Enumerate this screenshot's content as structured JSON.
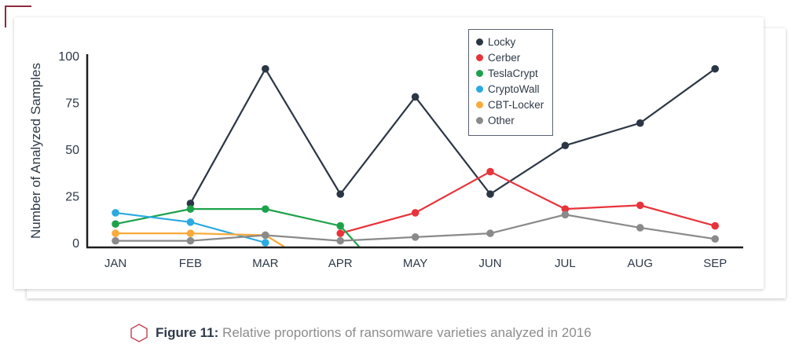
{
  "chart_data": {
    "type": "line",
    "title": "",
    "xlabel": "",
    "ylabel": "Number of Analyzed Samples",
    "ylim": [
      0,
      100
    ],
    "yticks": [
      0,
      25,
      50,
      75,
      100
    ],
    "categories": [
      "JAN",
      "FEB",
      "MAR",
      "APR",
      "MAY",
      "JUN",
      "JUL",
      "AUG",
      "SEP"
    ],
    "grid": false,
    "legend_position": "top-center",
    "series": [
      {
        "name": "Locky",
        "color": "#2b3645",
        "values": [
          null,
          21,
          93,
          26,
          78,
          26,
          52,
          64,
          93
        ]
      },
      {
        "name": "Cerber",
        "color": "#e8333a",
        "values": [
          null,
          null,
          null,
          5,
          16,
          38,
          18,
          20,
          9
        ]
      },
      {
        "name": "TeslaCrypt",
        "color": "#1da24b",
        "values": [
          10,
          18,
          18,
          9,
          null,
          null,
          null,
          null,
          null
        ],
        "drops_to_zero_after": true
      },
      {
        "name": "CryptoWall",
        "color": "#29aae2",
        "values": [
          16,
          11,
          0,
          null,
          null,
          null,
          null,
          null,
          null
        ]
      },
      {
        "name": "CBT-Locker",
        "color": "#f9aa3a",
        "values": [
          5,
          5,
          4,
          null,
          null,
          null,
          null,
          null,
          null
        ],
        "drops_to_zero_after": true
      },
      {
        "name": "Other",
        "color": "#8a8a8a",
        "values": [
          1,
          1,
          4,
          1,
          3,
          5,
          15,
          8,
          2
        ]
      }
    ]
  },
  "caption": {
    "label": "Figure 11:",
    "text": " Relative proportions of ransomware varieties analyzed in 2016",
    "icon": "hexagon-icon",
    "icon_color": "#c0404f"
  }
}
